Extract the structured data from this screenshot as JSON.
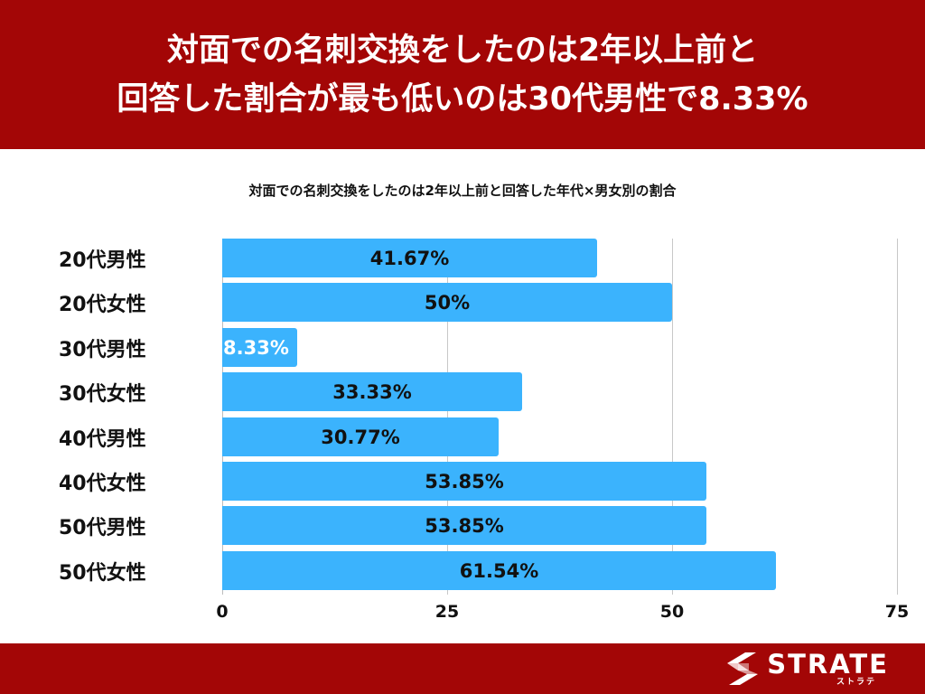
{
  "header": {
    "line1": "対面での名刺交換をしたのは2年以上前と",
    "line2": "回答した割合が最も低いのは30代男性で8.33%"
  },
  "chart_title": "対面での名刺交換をしたのは2年以上前と回答した年代×男女別の割合",
  "colors": {
    "banner": "#a30606",
    "bar": "#3bb3fd",
    "gridline": "#c8c8c8",
    "text": "#111111"
  },
  "chart_data": {
    "type": "bar",
    "orientation": "horizontal",
    "title": "対面での名刺交換をしたのは2年以上前と回答した年代×男女別の割合",
    "categories": [
      "20代男性",
      "20代女性",
      "30代男性",
      "30代女性",
      "40代男性",
      "40代女性",
      "50代男性",
      "50代女性"
    ],
    "values": [
      41.67,
      50,
      8.33,
      33.33,
      30.77,
      53.85,
      53.85,
      61.54
    ],
    "value_labels": [
      "41.67%",
      "50%",
      "8.33%",
      "33.33%",
      "30.77%",
      "53.85%",
      "53.85%",
      "61.54%"
    ],
    "xlabel": "",
    "ylabel": "",
    "xlim": [
      0,
      75
    ],
    "xticks": [
      "0",
      "25",
      "50",
      "75"
    ],
    "grid": true,
    "legend": null
  },
  "footer": {
    "logo_text": "STRATE",
    "logo_subtext": "ストラテ",
    "logo_icon": "strate-s-logo-icon"
  }
}
